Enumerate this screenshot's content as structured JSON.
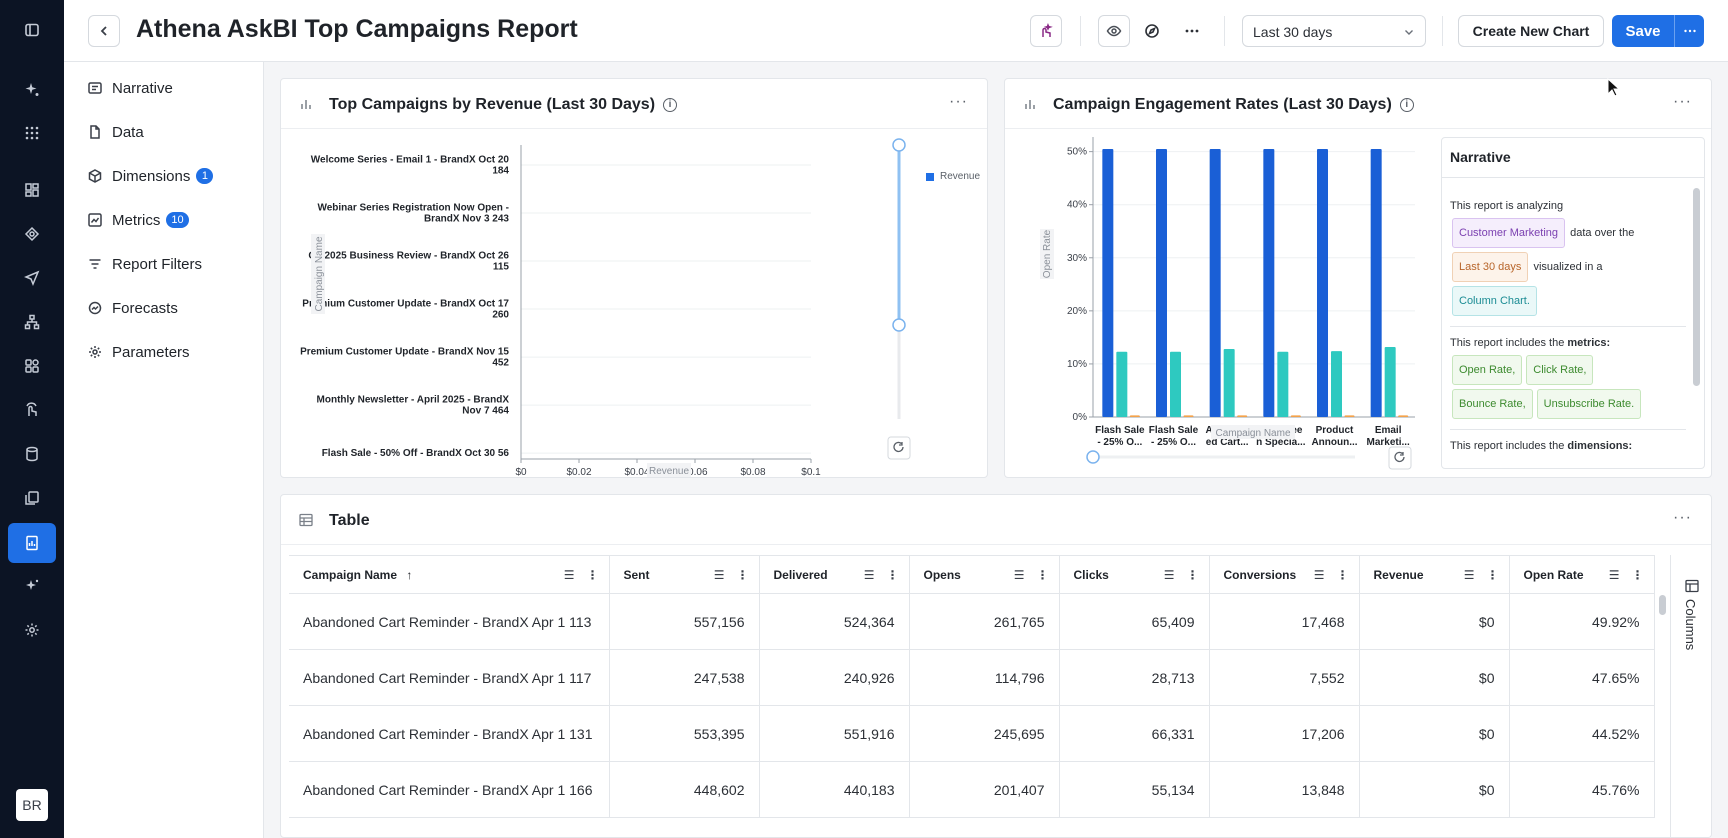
{
  "header": {
    "title": "Athena AskBI Top Campaigns Report",
    "date_range": "Last 30 days",
    "create_chart_label": "Create New Chart",
    "save_label": "Save"
  },
  "user": {
    "initials": "BR"
  },
  "left_nav": {
    "items": [
      {
        "label": "Narrative",
        "icon": "narrative-icon"
      },
      {
        "label": "Data",
        "icon": "file-icon"
      },
      {
        "label": "Dimensions",
        "icon": "cube-icon",
        "badge": "1"
      },
      {
        "label": "Metrics",
        "icon": "metrics-chart-icon",
        "badge": "10"
      },
      {
        "label": "Report Filters",
        "icon": "filter-icon"
      },
      {
        "label": "Forecasts",
        "icon": "forecast-icon"
      },
      {
        "label": "Parameters",
        "icon": "gear-icon"
      }
    ]
  },
  "revenue_chart": {
    "title": "Top Campaigns by Revenue (Last 30 Days)",
    "ylabel": "Campaign Name",
    "xlabel": "Revenue",
    "legend": "Revenue",
    "categories": [
      "Welcome Series - Email 1 - BrandX Oct 20 184",
      "Webinar Series Registration Now Open - BrandX Nov 3 243",
      "Q3 2025 Business Review - BrandX Oct 26 115",
      "Premium Customer Update - BrandX Oct 17 260",
      "Premium Customer Update - BrandX Nov 15 452",
      "Monthly Newsletter - April 2025 - BrandX Nov 7 464",
      "Flash Sale - 50% Off - BrandX Oct 30 56"
    ],
    "xticks": [
      "$0",
      "$0.02",
      "$0.04",
      "$0.06",
      "$0.08",
      "$0.1"
    ]
  },
  "engagement_chart": {
    "title": "Campaign Engagement Rates (Last 30 Days)",
    "ylabel": "Open Rate",
    "xlabel": "Campaign Name",
    "yticks": [
      "50%",
      "40%",
      "30%",
      "20%",
      "10%",
      "0%"
    ],
    "categories": [
      [
        "Flash Sale",
        "- 25% O..."
      ],
      [
        "Flash Sale",
        "- 25% O..."
      ],
      [
        "Abandon",
        "ed Cart..."
      ],
      [
        "Hallowee",
        "n Specia..."
      ],
      [
        "Product",
        "Announ..."
      ],
      [
        "Email",
        "Marketi..."
      ]
    ]
  },
  "narrative": {
    "title": "Narrative",
    "intro": "This report is analyzing",
    "over_the": "data over the",
    "visualized": "visualized in a",
    "chip_dataset": "Customer Marketing",
    "chip_period": "Last 30 days",
    "chip_chart": "Column Chart.",
    "metrics_intro_a": "This report includes the",
    "metrics_word": "metrics:",
    "metric_chips": [
      "Open Rate,",
      "Click Rate,",
      "Bounce Rate,",
      "Unsubscribe Rate."
    ],
    "dims_intro_a": "This report includes the",
    "dims_word": "dimensions:"
  },
  "table": {
    "title": "Table",
    "columns_label": "Columns",
    "headers": [
      "Campaign Name",
      "Sent",
      "Delivered",
      "Opens",
      "Clicks",
      "Conversions",
      "Revenue",
      "Open Rate"
    ],
    "rows": [
      [
        "Abandoned Cart Reminder - BrandX Apr 1 113",
        "557,156",
        "524,364",
        "261,765",
        "65,409",
        "17,468",
        "$0",
        "49.92%"
      ],
      [
        "Abandoned Cart Reminder - BrandX Apr 1 117",
        "247,538",
        "240,926",
        "114,796",
        "28,713",
        "7,552",
        "$0",
        "47.65%"
      ],
      [
        "Abandoned Cart Reminder - BrandX Apr 1 131",
        "553,395",
        "551,916",
        "245,695",
        "66,331",
        "17,206",
        "$0",
        "44.52%"
      ],
      [
        "Abandoned Cart Reminder - BrandX Apr 1 166",
        "448,602",
        "440,183",
        "201,407",
        "55,134",
        "13,848",
        "$0",
        "45.76%"
      ]
    ]
  },
  "chart_data": [
    {
      "type": "bar",
      "title": "Top Campaigns by Revenue (Last 30 Days)",
      "xlabel": "Revenue",
      "ylabel": "Campaign Name",
      "categories": [
        "Welcome Series - Email 1 - BrandX Oct 20 184",
        "Webinar Series Registration Now Open - BrandX Nov 3 243",
        "Q3 2025 Business Review - BrandX Oct 26 115",
        "Premium Customer Update - BrandX Oct 17 260",
        "Premium Customer Update - BrandX Nov 15 452",
        "Monthly Newsletter - April 2025 - BrandX Nov 7 464",
        "Flash Sale - 50% Off - BrandX Oct 30 56"
      ],
      "series": [
        {
          "name": "Revenue",
          "values": [
            0,
            0,
            0,
            0,
            0,
            0,
            0
          ]
        }
      ],
      "xlim": [
        0,
        0.1
      ],
      "grid": true,
      "legend": "right"
    },
    {
      "type": "bar",
      "title": "Campaign Engagement Rates (Last 30 Days)",
      "xlabel": "Campaign Name",
      "ylabel": "Open Rate",
      "categories": [
        "Flash Sale - 25% O...",
        "Flash Sale - 25% O...",
        "Abandoned Cart...",
        "Halloween Specia...",
        "Product Announ...",
        "Email Marketi..."
      ],
      "series": [
        {
          "values": [
            50.5,
            50.5,
            50.5,
            50.5,
            50.5,
            50.5
          ],
          "color": "#1a5fd6"
        },
        {
          "values": [
            12.3,
            12.3,
            12.8,
            12.3,
            12.4,
            13.2
          ],
          "color": "#2ec9c0"
        },
        {
          "values": [
            0.3,
            0.3,
            0.3,
            0.3,
            0.3,
            0.3
          ],
          "color": "#f4a24a"
        }
      ],
      "ylim": [
        0,
        52
      ],
      "grid": true
    }
  ]
}
